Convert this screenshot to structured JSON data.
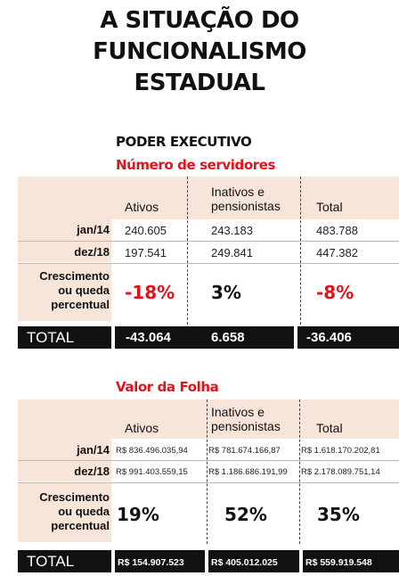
{
  "title": {
    "line1": "A SITUAÇÃO DO",
    "line2": "FUNCIONALISMO",
    "line3": "ESTADUAL"
  },
  "section": "PODER EXECUTIVO",
  "colors": {
    "accent_red": "#e1141a",
    "band": "#f8e5d9",
    "total_bar": "#111111"
  },
  "table1": {
    "title": "Número de servidores",
    "headers": {
      "ativos": "Ativos",
      "inativos_l1": "Inativos e",
      "inativos_l2": "pensionistas",
      "total": "Total"
    },
    "rows": [
      {
        "label": "jan/14",
        "ativos": "240.605",
        "inativos": "243.183",
        "total": "483.788"
      },
      {
        "label": "dez/18",
        "ativos": "197.541",
        "inativos": "249.841",
        "total": "447.382"
      }
    ],
    "growth": {
      "label_l1": "Crescimento",
      "label_l2": "ou queda",
      "label_l3": "percentual",
      "ativos": "-18%",
      "inativos": "3%",
      "total": "-8%"
    },
    "total_row": {
      "label": "TOTAL",
      "ativos": "-43.064",
      "inativos": "6.658",
      "total": "-36.406"
    }
  },
  "table2": {
    "title": "Valor da Folha",
    "headers": {
      "ativos": "Ativos",
      "inativos_l1": "Inativos e",
      "inativos_l2": "pensionistas",
      "total": "Total"
    },
    "rows": [
      {
        "label": "jan/14",
        "ativos": "R$ 836.496.035,94",
        "inativos": "R$ 781.674.166,87",
        "total": "R$ 1.618.170.202,81"
      },
      {
        "label": "dez/18",
        "ativos": "R$ 991.403.559,15",
        "inativos": "R$ 1.186.686.191,99",
        "total": "R$ 2.178.089.751,14"
      }
    ],
    "growth": {
      "label_l1": "Crescimento",
      "label_l2": "ou queda",
      "label_l3": "percentual",
      "ativos": "19%",
      "inativos": "52%",
      "total": "35%"
    },
    "total_row": {
      "label": "TOTAL",
      "ativos": "R$ 154.907.523",
      "inativos": "R$ 405.012.025",
      "total": "R$ 559.919.548"
    }
  }
}
